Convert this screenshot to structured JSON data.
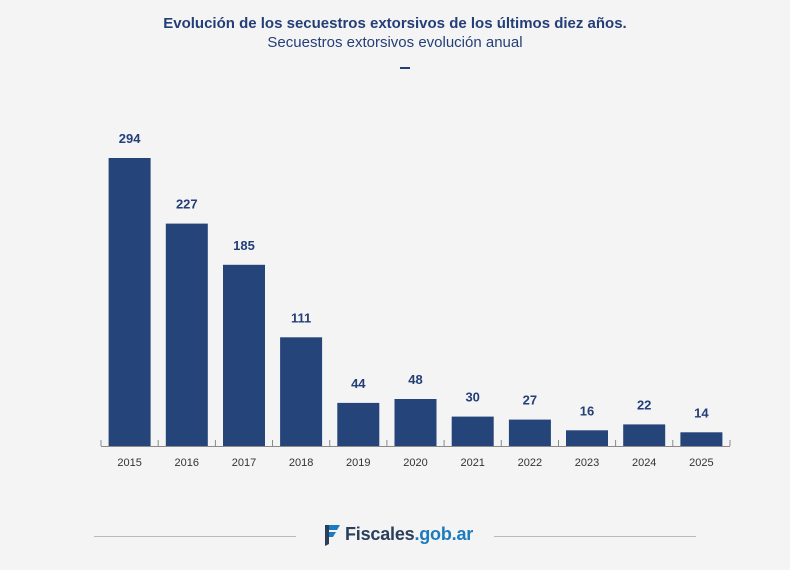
{
  "header": {
    "title": "Evolución de los secuestros extorsivos de los últimos diez años.",
    "subtitle": "Secuestros extorsivos evolución anual"
  },
  "footer": {
    "brand_main": "Fiscales",
    "brand_domain": ".gob.ar",
    "logo_icon": "fiscales-logo-icon"
  },
  "colors": {
    "bar": "#25447a",
    "label": "#243e77",
    "tick_label": "#333333",
    "axis": "#8a8a8a"
  },
  "chart_data": {
    "type": "bar",
    "title": "Evolución de los secuestros extorsivos de los últimos diez años.",
    "subtitle": "Secuestros extorsivos evolución anual",
    "categories": [
      "2015",
      "2016",
      "2017",
      "2018",
      "2019",
      "2020",
      "2021",
      "2022",
      "2023",
      "2024",
      "2025"
    ],
    "values": [
      294,
      227,
      185,
      111,
      44,
      48,
      30,
      27,
      16,
      22,
      14
    ],
    "xlabel": "",
    "ylabel": "",
    "ylim": [
      0,
      294
    ],
    "grid": false,
    "data_labels": true
  }
}
